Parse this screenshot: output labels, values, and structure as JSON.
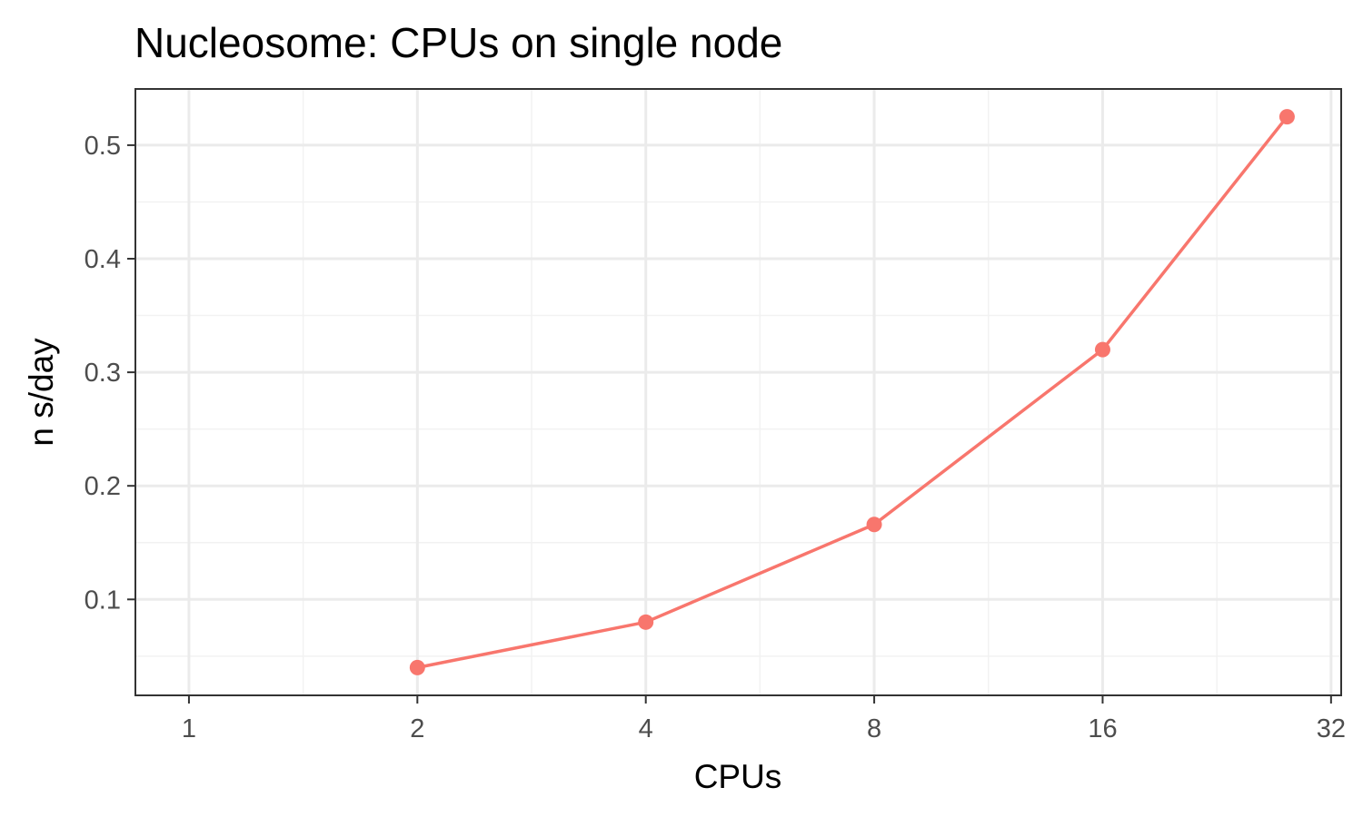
{
  "chart_data": {
    "type": "line",
    "title": "Nucleosome: CPUs on single node",
    "xlabel": "CPUs",
    "ylabel": "n s/day",
    "x_scale": "log2",
    "x_ticks": [
      1,
      2,
      4,
      8,
      16,
      32
    ],
    "x_tick_labels": [
      "1",
      "2",
      "4",
      "8",
      "16",
      "32"
    ],
    "y_ticks": [
      0.1,
      0.2,
      0.3,
      0.4,
      0.5
    ],
    "y_tick_labels": [
      "0.1",
      "0.2",
      "0.3",
      "0.4",
      "0.5"
    ],
    "xlim": [
      0.85,
      33
    ],
    "ylim": [
      0.0155,
      0.5495
    ],
    "grid": true,
    "legend": "none",
    "series": [
      {
        "color": "#F8766D",
        "x": [
          2,
          4,
          8,
          16,
          28
        ],
        "y": [
          0.04,
          0.08,
          0.166,
          0.32,
          0.525
        ]
      }
    ]
  }
}
